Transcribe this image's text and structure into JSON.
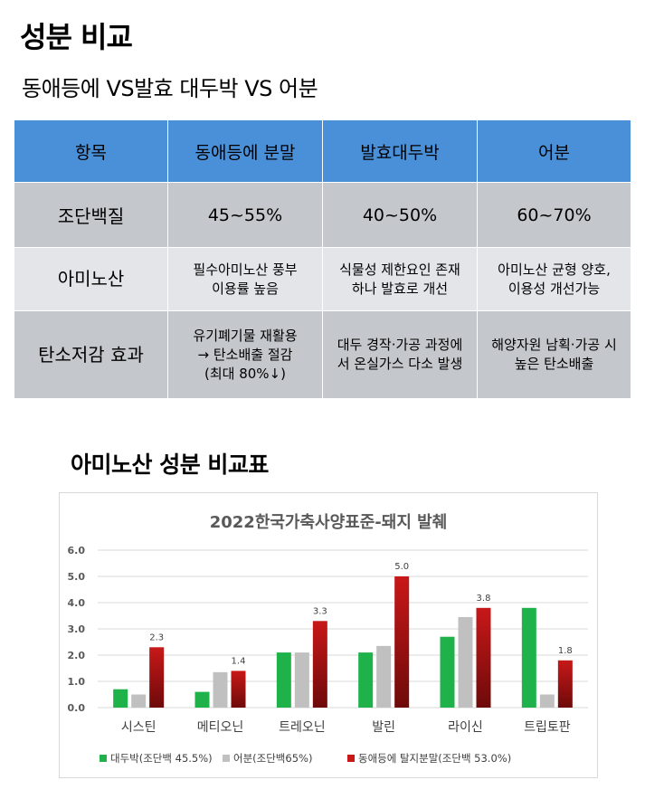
{
  "page": {
    "title": "성분 비교",
    "subtitle": "동애등에 VS발효 대두박 VS 어분",
    "section_title": "아미노산 성분 비교표"
  },
  "table": {
    "headers": [
      "항목",
      "동애등에 분말",
      "발효대두박",
      "어분"
    ],
    "rows": [
      [
        "조단백질",
        "45~55%",
        "40~50%",
        "60~70%"
      ],
      [
        "아미노산",
        "필수아미노산 풍부\n이용률 높음",
        "식물성 제한요인 존재\n하나 발효로 개선",
        "아미노산 균형 양호,\n이용성 개선가능"
      ],
      [
        "탄소저감 효과",
        "유기폐기물 재활용\n→ 탄소배출 절감\n(최대 80%↓)",
        "대두 경작·가공 과정에\n서 온실가스 다소 발생",
        "해양자원 남획·가공 시\n높은 탄소배출"
      ]
    ]
  },
  "chart_data": {
    "type": "bar",
    "title": "2022한국가축사양표준-돼지 발췌",
    "categories": [
      "시스틴",
      "메티오닌",
      "트레오닌",
      "발린",
      "라이신",
      "트립토판"
    ],
    "ylim": [
      0,
      6
    ],
    "yticks": [
      "0.0",
      "1.0",
      "2.0",
      "3.0",
      "4.0",
      "5.0",
      "6.0"
    ],
    "grid": true,
    "legend_position": "bottom",
    "series": [
      {
        "name": "대두박(조단백 45.5%)",
        "color": "#1fb24a",
        "values": [
          0.7,
          0.6,
          2.1,
          2.1,
          2.7,
          3.8
        ]
      },
      {
        "name": "어분(조단백65%)",
        "color": "#c0c0c0",
        "values": [
          0.5,
          1.35,
          2.1,
          2.35,
          3.45,
          0.5
        ]
      },
      {
        "name": "동애등에 탈지분말(조단백 53.0%)",
        "color": "#c81818",
        "values": [
          2.3,
          1.4,
          3.3,
          5.0,
          3.8,
          1.8
        ],
        "labels": [
          "2.3",
          "1.4",
          "3.3",
          "5.0",
          "3.8",
          "1.8"
        ]
      }
    ]
  }
}
